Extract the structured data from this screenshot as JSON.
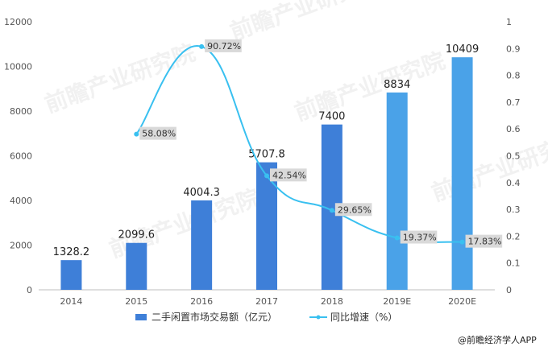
{
  "chart_data": {
    "type": "bar+line",
    "categories": [
      "2014",
      "2015",
      "2016",
      "2017",
      "2018",
      "2019E",
      "2020E"
    ],
    "series": [
      {
        "name": "二手闲置市场交易额（亿元）",
        "type": "bar",
        "axis": "left",
        "values": [
          1328.2,
          2099.6,
          4004.3,
          5707.8,
          7400,
          8834,
          10409
        ],
        "labels": [
          "1328.2",
          "2099.6",
          "4004.3",
          "5707.8",
          "7400",
          "8834",
          "10409"
        ],
        "colors": [
          "#3e7fd8",
          "#3e7fd8",
          "#3e7fd8",
          "#3e7fd8",
          "#3e7fd8",
          "#4aa2e8",
          "#4aa2e8"
        ]
      },
      {
        "name": "同比增速（%）",
        "type": "line",
        "axis": "right",
        "values": [
          null,
          0.5808,
          0.9072,
          0.4254,
          0.2965,
          0.1937,
          0.1783
        ],
        "labels": [
          null,
          "58.08%",
          "90.72%",
          "42.54%",
          "29.65%",
          "19.37%",
          "17.83%"
        ],
        "color": "#39c0f0"
      }
    ],
    "y_left": {
      "min": 0,
      "max": 12000,
      "ticks": [
        "0",
        "2000",
        "4000",
        "6000",
        "8000",
        "10000",
        "12000"
      ]
    },
    "y_right": {
      "min": 0,
      "max": 1,
      "ticks": [
        "0",
        "0.1",
        "0.2",
        "0.3",
        "0.4",
        "0.5",
        "0.6",
        "0.7",
        "0.8",
        "0.9",
        "1"
      ]
    },
    "grid": false,
    "legend_position": "bottom"
  },
  "watermark_text": "前瞻产业研究院",
  "source_text": "@前瞻经济学人APP"
}
